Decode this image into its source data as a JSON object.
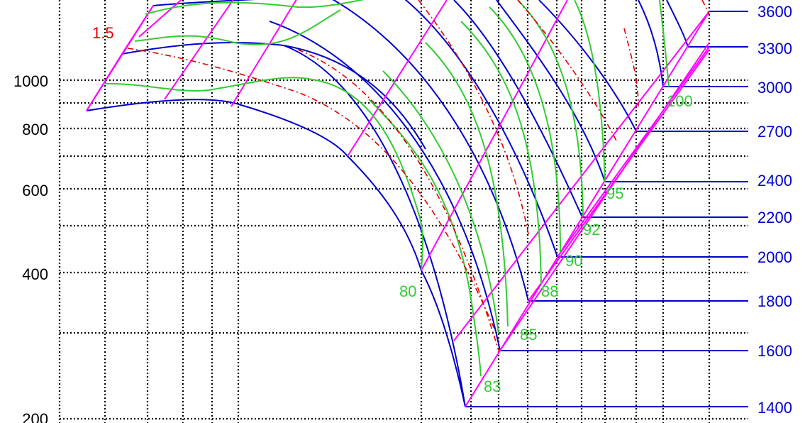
{
  "chart_data": {
    "type": "line",
    "title": "",
    "xlabel": "",
    "ylabel": "",
    "grid": true,
    "y_scale": "log",
    "colors": {
      "speed_lines": "#0000cc",
      "efficiency_lines": "#33cc33",
      "surge_lines": "#ff00ff",
      "dash_dot": "#e00000",
      "grid": "#000000"
    },
    "left_axis_ticks": [
      {
        "value": 200,
        "label": "200"
      },
      {
        "value": 400,
        "label": "400"
      },
      {
        "value": 600,
        "label": "600"
      },
      {
        "value": 800,
        "label": "800"
      },
      {
        "value": 1000,
        "label": "1000"
      }
    ],
    "right_axis_ticks": [
      "3600",
      "3300",
      "3000",
      "2700",
      "2400",
      "2200",
      "2000",
      "1800",
      "1600",
      "1400"
    ],
    "efficiency_labels": [
      "80",
      "83",
      "85",
      "88",
      "90",
      "92",
      "95",
      "100"
    ],
    "annotation": "1.5"
  }
}
